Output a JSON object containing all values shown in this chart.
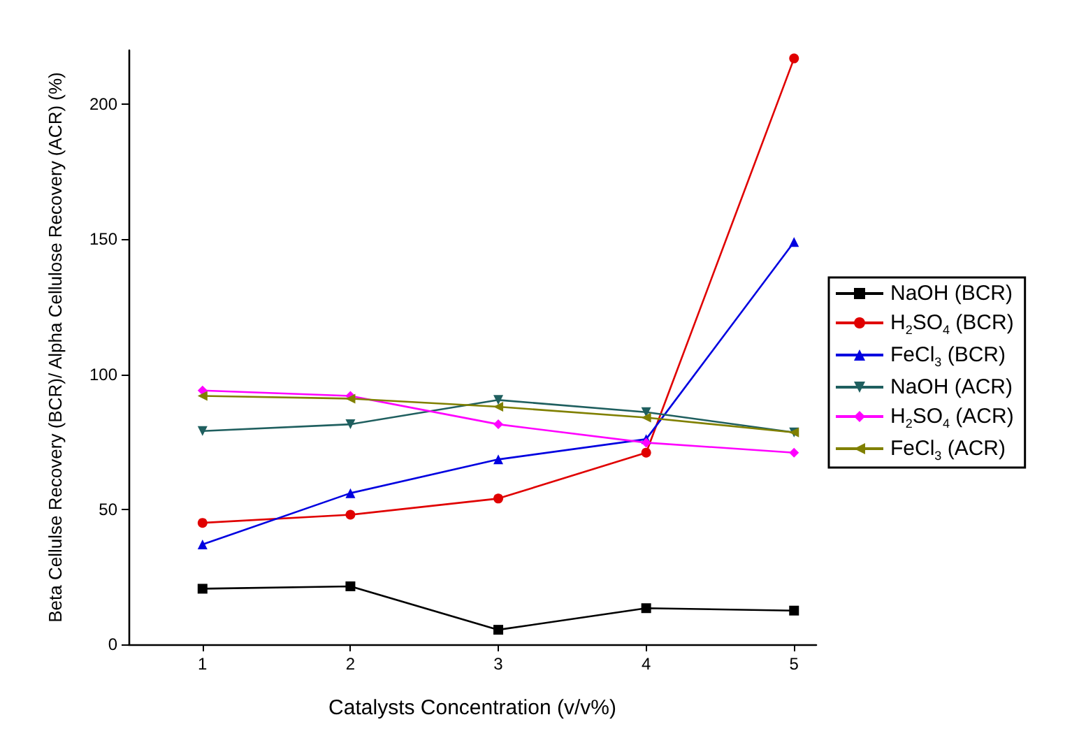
{
  "chart_data": {
    "type": "line",
    "xlabel": "Catalysts Concentration (v/v%)",
    "ylabel": "Beta Cellulse Recovery (BCR)/ Alpha Cellulose Recovery (ACR) (%)",
    "x": [
      1,
      2,
      3,
      4,
      5
    ],
    "xlim": [
      0.5,
      5.15
    ],
    "xticks": [
      1,
      2,
      3,
      4,
      5
    ],
    "ylim": [
      0,
      220
    ],
    "yticks": [
      0,
      50,
      100,
      150,
      200
    ],
    "grid": false,
    "legend": "right",
    "line_style": "solid",
    "series": [
      {
        "name": "NaOH (BCR)",
        "color": "#000000",
        "marker": "square",
        "values": [
          20.6,
          21.5,
          5.4,
          13.4,
          12.5
        ]
      },
      {
        "name": "H$_{2}$SO$_{4}$ (BCR)",
        "color": "#e00000",
        "marker": "circle",
        "values": [
          45,
          48,
          54,
          71,
          217
        ]
      },
      {
        "name": "FeCl$_{3}$ (BCR)",
        "color": "#0000e0",
        "marker": "triangle",
        "values": [
          37,
          56,
          68.5,
          76,
          149
        ]
      },
      {
        "name": "NaOH (ACR)",
        "color": "#1f5f5f",
        "marker": "triangle-down",
        "values": [
          79,
          81.5,
          90.5,
          86,
          78.5
        ]
      },
      {
        "name": "H$_{2}$SO$_{4}$ (ACR)",
        "color": "#ff00ff",
        "marker": "diamond",
        "values": [
          94,
          92,
          81.5,
          74.7,
          71
        ]
      },
      {
        "name": "FeCl$_{3}$ (ACR)",
        "color": "#808000",
        "marker": "triangle-left",
        "values": [
          92,
          91,
          88,
          84,
          78.5
        ]
      }
    ]
  }
}
